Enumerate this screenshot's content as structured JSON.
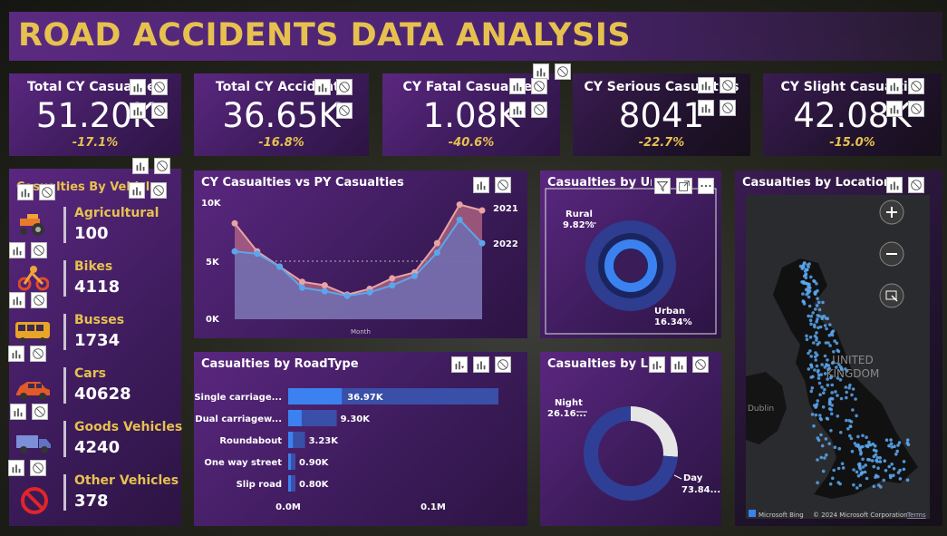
{
  "header": {
    "title": "ROAD ACCIDENTS DATA ANALYSIS"
  },
  "kpis": [
    {
      "title": "Total CY Casualties",
      "value": "51.20K",
      "change": "-17.1%"
    },
    {
      "title": "Total CY Accidents",
      "value": "36.65K",
      "change": "-16.8%"
    },
    {
      "title": "CY Fatal Casualties",
      "value": "1.08K",
      "change": "-40.6%"
    },
    {
      "title": "CY Serious Casualties",
      "value": "8041",
      "change": "-22.7%"
    },
    {
      "title": "CY Slight Casualties",
      "value": "42.08K",
      "change": "-15.0%"
    }
  ],
  "vehicles": {
    "title": "Casualties By Vehicle",
    "items": [
      {
        "label": "Agricultural",
        "value": "100",
        "icon": "tractor-icon"
      },
      {
        "label": "Bikes",
        "value": "4118",
        "icon": "bike-icon"
      },
      {
        "label": "Busses",
        "value": "1734",
        "icon": "bus-icon"
      },
      {
        "label": "Cars",
        "value": "40628",
        "icon": "car-icon"
      },
      {
        "label": "Goods Vehicles",
        "value": "4240",
        "icon": "truck-icon"
      },
      {
        "label": "Other Vehicles",
        "value": "378",
        "icon": "prohibited-icon"
      }
    ]
  },
  "line_chart": {
    "title": "CY Casualties vs PY Casualties",
    "legend_2021": "2021",
    "legend_2022": "2022",
    "xlabel": "Month"
  },
  "urban_chart": {
    "title": "Casualties by Urban/Rural",
    "rural_label": "Rural",
    "rural_pct": "9.82%",
    "urban_label": "Urban",
    "urban_pct": "16.34%"
  },
  "location": {
    "title": "Casualties by Location",
    "map_label_line1": "UNITED",
    "map_label_line2": "KINGDOM",
    "city_dublin": "Dublin",
    "bing": "Microsoft Bing",
    "copyright": "© 2024 Microsoft Corporation",
    "terms": "Terms"
  },
  "road_chart": {
    "title": "Casualties by RoadType",
    "tick_0": "0.0M",
    "tick_1": "0.1M"
  },
  "light_chart": {
    "title": "Casualties by Light Condition",
    "night_label": "Night",
    "night_value": "26.16...",
    "day_label": "Day",
    "day_value": "73.84..."
  },
  "colors": {
    "accent": "#e6c14f",
    "bar": "#3b82f0",
    "bar_bg": "#3a4fa8",
    "py": "#e9a3a3",
    "cy": "#5aa6ee"
  },
  "chart_data": [
    {
      "type": "line",
      "title": "CY Casualties vs PY Casualties",
      "xlabel": "Month",
      "ylabel": "",
      "ylim": [
        0,
        10000
      ],
      "y_ticks": [
        "0K",
        "5K",
        "10K"
      ],
      "x": [
        1,
        2,
        3,
        4,
        5,
        6,
        7,
        8,
        9,
        10,
        11,
        12
      ],
      "series": [
        {
          "name": "2021",
          "values": [
            8200,
            5800,
            4500,
            3200,
            2900,
            2100,
            2600,
            3500,
            4000,
            6500,
            9800,
            9300
          ]
        },
        {
          "name": "2022",
          "values": [
            5800,
            5600,
            4500,
            2700,
            2400,
            2000,
            2300,
            2900,
            3700,
            5700,
            8500,
            6500
          ]
        }
      ]
    },
    {
      "type": "bar",
      "title": "Casualties by RoadType",
      "categories": [
        "Single carriage...",
        "Dual carriagew...",
        "Roundabout",
        "One way street",
        "Slip road"
      ],
      "values": [
        36970,
        9300,
        3230,
        900,
        800
      ],
      "data_labels": [
        "36.97K",
        "9.30K",
        "3.23K",
        "0.90K",
        "0.80K"
      ],
      "xlim": [
        0,
        100000
      ]
    },
    {
      "type": "pie",
      "title": "Casualties by Urban/Rural",
      "categories": [
        "Rural",
        "Urban"
      ],
      "values": [
        9.82,
        16.34
      ]
    },
    {
      "type": "pie",
      "title": "Casualties by Light Condition",
      "categories": [
        "Night",
        "Day"
      ],
      "values": [
        26.16,
        73.84
      ]
    }
  ]
}
